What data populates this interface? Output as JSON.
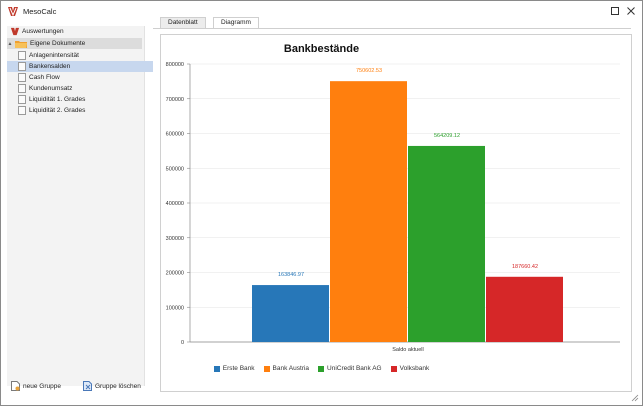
{
  "window": {
    "title": "MesoCalc"
  },
  "sidebar": {
    "root_label": "Auswertungen",
    "group_label": "Eigene Dokumente",
    "items": [
      {
        "label": "Anlagenintensität",
        "selected": false
      },
      {
        "label": "Bankensalden",
        "selected": true
      },
      {
        "label": "Cash Flow",
        "selected": false
      },
      {
        "label": "Kundenumsatz",
        "selected": false
      },
      {
        "label": "Liquidität 1. Grades",
        "selected": false
      },
      {
        "label": "Liquidität 2. Grades",
        "selected": false
      }
    ],
    "footer": {
      "new_group": "neue Gruppe",
      "delete_group": "Gruppe löschen"
    }
  },
  "tabs": [
    {
      "label": "Datenblatt",
      "active": false
    },
    {
      "label": "Diagramm",
      "active": true
    }
  ],
  "chart_data": {
    "type": "bar",
    "title": "Bankbestände",
    "categories": [
      "Saldo aktuell"
    ],
    "ylim": [
      0,
      800000
    ],
    "yticks": [
      0,
      100000,
      200000,
      300000,
      400000,
      500000,
      600000,
      700000,
      800000
    ],
    "grid": "horizontal",
    "legend_position": "bottom",
    "series": [
      {
        "name": "Erste Bank",
        "values": [
          163846.97
        ],
        "label": "163846.97",
        "color": "#2777b8"
      },
      {
        "name": "Bank Austria",
        "values": [
          750602.53
        ],
        "label": "750602.53",
        "color": "#ff7f0e"
      },
      {
        "name": "UniCredit Bank AG",
        "values": [
          564209.12
        ],
        "label": "564209.12",
        "color": "#2ca02c"
      },
      {
        "name": "Volksbank",
        "values": [
          187660.42
        ],
        "label": "187660.42",
        "color": "#d62728"
      }
    ]
  }
}
